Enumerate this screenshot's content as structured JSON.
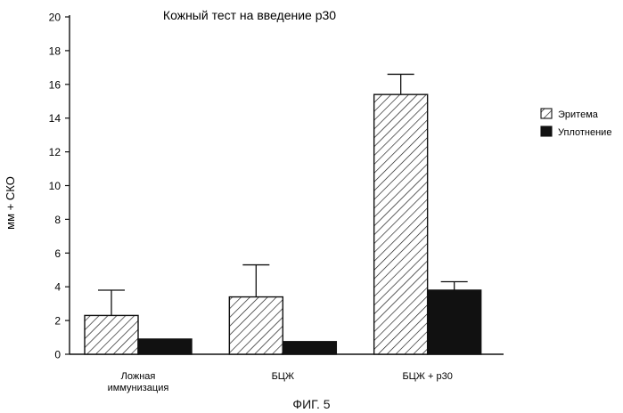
{
  "chart_data": {
    "type": "bar",
    "title": "Кожный тест на введение р30",
    "xlabel": "",
    "ylabel": "мм + СКО",
    "ylim": [
      0,
      20
    ],
    "yticks": [
      "0",
      "2",
      "4",
      "6",
      "8",
      "10",
      "12",
      "14",
      "16",
      "18",
      "20"
    ],
    "categories": [
      [
        "Ложная",
        "иммунизация"
      ],
      [
        "БЦЖ"
      ],
      [
        "БЦЖ  + р30"
      ]
    ],
    "series": [
      {
        "name": "Эритема",
        "values": [
          2.3,
          3.4,
          15.4
        ],
        "errors": [
          1.5,
          1.9,
          1.2
        ],
        "fill": "hatch"
      },
      {
        "name": "Уплотнение",
        "values": [
          0.9,
          0.75,
          3.8
        ],
        "errors": [
          0.0,
          0.0,
          0.5
        ],
        "fill": "#111111"
      }
    ],
    "legend_position": "right",
    "grid": false
  },
  "figure_label": "ФИГ. 5"
}
